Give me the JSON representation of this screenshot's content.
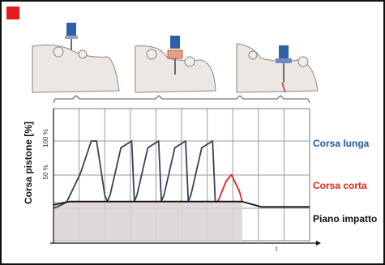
{
  "chart_data": {
    "type": "line",
    "ylabel": "Corsa pistone [%]",
    "y_ticks": [
      "100 %",
      "50 %"
    ],
    "x_axis_label": "t",
    "ylim": [
      0,
      100
    ],
    "legend": [
      {
        "name": "Corsa lunga",
        "color": "#1f57a5"
      },
      {
        "name": "Corsa corta",
        "color": "#e0241c"
      },
      {
        "name": "Piano impatto",
        "color": "#111111"
      }
    ],
    "series": [
      {
        "name": "Corsa lunga",
        "color": "#3a3f5c",
        "x": [
          0,
          3,
          5,
          10,
          14,
          16,
          19,
          20,
          21,
          25,
          29,
          30,
          31,
          35,
          39,
          40,
          41,
          45,
          49,
          50,
          51,
          55,
          59,
          60,
          61
        ],
        "y": [
          0,
          5,
          10,
          52,
          100,
          100,
          20,
          10,
          20,
          90,
          100,
          10,
          20,
          90,
          100,
          10,
          20,
          90,
          100,
          10,
          20,
          90,
          100,
          10,
          10
        ]
      },
      {
        "name": "Corsa corta",
        "color": "#e0241c",
        "x": [
          61,
          64,
          66,
          69,
          70
        ],
        "y": [
          10,
          40,
          50,
          25,
          10
        ]
      },
      {
        "name": "Piano impatto",
        "color": "#111111",
        "x": [
          0,
          6,
          70,
          77,
          95
        ],
        "y": [
          5,
          10,
          10,
          2,
          2
        ]
      }
    ]
  },
  "colors": {
    "frame": "#111111",
    "corner": "#e31d1a",
    "grid": "#9a9a9a",
    "fill_below": "#d9d2d6",
    "long_stroke": "#1f57a5",
    "short_stroke": "#e0241c"
  },
  "illustrations": [
    "drilling-rig-icon-1",
    "drilling-rig-icon-2",
    "drilling-rig-icon-3"
  ]
}
